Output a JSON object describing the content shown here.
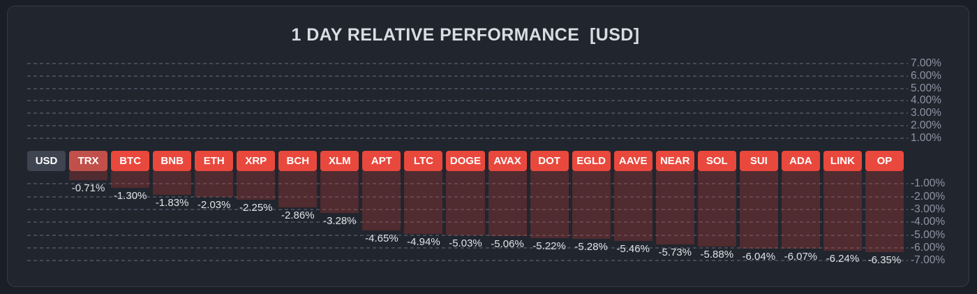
{
  "title": "1 DAY RELATIVE PERFORMANCE  [USD]",
  "axis": {
    "positive_ticks": [
      "7.00%",
      "6.00%",
      "5.00%",
      "4.00%",
      "3.00%",
      "2.00%",
      "1.00%"
    ],
    "negative_ticks": [
      "-1.00%",
      "-2.00%",
      "-3.00%",
      "-4.00%",
      "-5.00%",
      "-6.00%",
      "-7.00%"
    ]
  },
  "colors": {
    "outer_bg": "#1a1e26",
    "card_bg": "#21252e",
    "card_border": "#353b46",
    "title_text": "#d9dde3",
    "grid": "#7c8696",
    "axis_text": "#8e96a4",
    "value_text": "#dfe3e8",
    "chip_default": "#e9483d",
    "chip_trx_muted": "#c2504a",
    "chip_usd_base": "#3e4450",
    "bar_fill": "rgba(206,58,52,0.27)"
  },
  "chart_data": {
    "type": "bar",
    "title": "1 DAY RELATIVE PERFORMANCE  [USD]",
    "baseline_symbol": "USD",
    "categories": [
      "USD",
      "TRX",
      "BTC",
      "BNB",
      "ETH",
      "XRP",
      "BCH",
      "XLM",
      "APT",
      "LTC",
      "DOGE",
      "AVAX",
      "DOT",
      "EGLD",
      "AAVE",
      "NEAR",
      "SOL",
      "SUI",
      "ADA",
      "LINK",
      "OP"
    ],
    "values": [
      0,
      -0.71,
      -1.3,
      -1.83,
      -2.03,
      -2.25,
      -2.86,
      -3.28,
      -4.65,
      -4.94,
      -5.03,
      -5.06,
      -5.22,
      -5.28,
      -5.46,
      -5.73,
      -5.88,
      -6.04,
      -6.07,
      -6.24,
      -6.35
    ],
    "labels": [
      "",
      "-0.71%",
      "-1.30%",
      "-1.83%",
      "-2.03%",
      "-2.25%",
      "-2.86%",
      "-3.28%",
      "-4.65%",
      "-4.94%",
      "-5.03%",
      "-5.06%",
      "-5.22%",
      "-5.28%",
      "-5.46%",
      "-5.73%",
      "-5.88%",
      "-6.04%",
      "-6.07%",
      "-6.24%",
      "-6.35%"
    ],
    "ylabel": "",
    "xlabel": "",
    "ylim": [
      -7.5,
      7.5
    ],
    "grid": "dashed",
    "legend": "none",
    "axis_position": "right"
  }
}
